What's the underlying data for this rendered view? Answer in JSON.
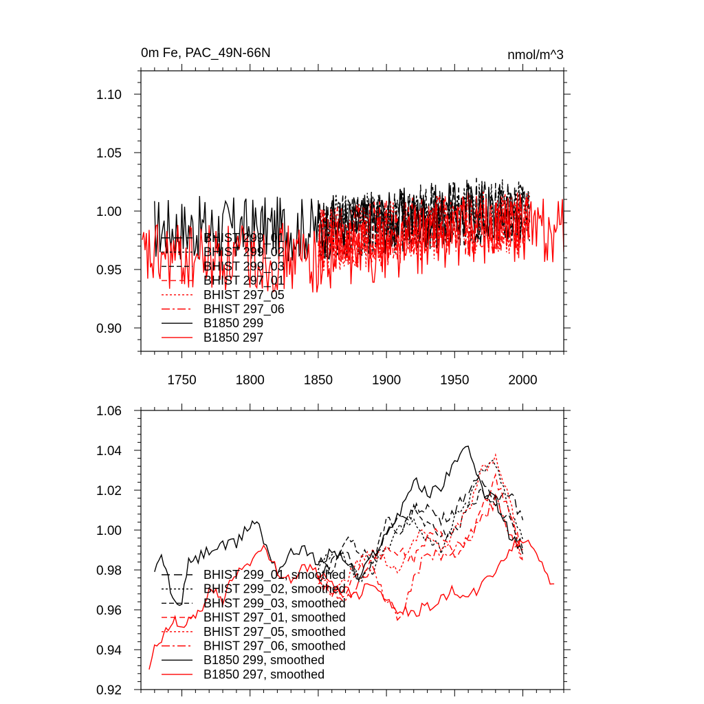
{
  "chart_data": [
    {
      "type": "line",
      "title": "0m Fe, PAC_49N-66N",
      "units": "nmol/m^3",
      "xlim": [
        1720,
        2030
      ],
      "ylim": [
        0.88,
        1.12
      ],
      "xticks": [
        1750,
        1800,
        1850,
        1900,
        1950,
        2000
      ],
      "yticks": [
        0.9,
        0.95,
        1.0,
        1.05,
        1.1
      ],
      "ytick_labels": [
        "0.90",
        "0.95",
        "1.00",
        "1.05",
        "1.10"
      ],
      "legend_position": "lower-left",
      "series": [
        {
          "name": "BHIST 299_01",
          "color": "#000000",
          "dash": "12,6",
          "x_start": 1850,
          "x_end": 2005,
          "base": 0.985,
          "trend": 0.015,
          "amp": 0.03,
          "seed": 11
        },
        {
          "name": "BHIST 299_02",
          "color": "#000000",
          "dash": "3,3",
          "x_start": 1850,
          "x_end": 2005,
          "base": 0.985,
          "trend": 0.015,
          "amp": 0.028,
          "seed": 12
        },
        {
          "name": "BHIST 299_03",
          "color": "#000000",
          "dash": "7,4",
          "x_start": 1850,
          "x_end": 2005,
          "base": 0.985,
          "trend": 0.015,
          "amp": 0.028,
          "seed": 13
        },
        {
          "name": "BHIST 297_01",
          "color": "#ff0000",
          "dash": "8,5",
          "x_start": 1850,
          "x_end": 2005,
          "base": 0.975,
          "trend": 0.015,
          "amp": 0.028,
          "seed": 14
        },
        {
          "name": "BHIST 297_05",
          "color": "#ff0000",
          "dash": "3,3",
          "x_start": 1850,
          "x_end": 2005,
          "base": 0.975,
          "trend": 0.015,
          "amp": 0.028,
          "seed": 15
        },
        {
          "name": "BHIST 297_06",
          "color": "#ff0000",
          "dash": "12,4,3,4",
          "x_start": 1850,
          "x_end": 2005,
          "base": 0.975,
          "trend": 0.015,
          "amp": 0.028,
          "seed": 16
        },
        {
          "name": "B1850 299",
          "color": "#000000",
          "dash": "",
          "x_start": 1730,
          "x_end": 2000,
          "base": 0.985,
          "trend": 0.015,
          "amp": 0.028,
          "seed": 17
        },
        {
          "name": "B1850 297",
          "color": "#ff0000",
          "dash": "",
          "x_start": 1721,
          "x_end": 2030,
          "base": 0.96,
          "trend": 0.025,
          "amp": 0.03,
          "seed": 18
        }
      ]
    },
    {
      "type": "line",
      "xlim": [
        1720,
        2030
      ],
      "ylim": [
        0.92,
        1.06
      ],
      "xticks": [
        1750,
        1800,
        1850,
        1900,
        1950,
        2000
      ],
      "yticks": [
        0.92,
        0.94,
        0.96,
        0.98,
        1.0,
        1.02,
        1.04,
        1.06
      ],
      "ytick_labels": [
        "0.92",
        "0.94",
        "0.96",
        "0.98",
        "1.00",
        "1.02",
        "1.04",
        "1.06"
      ],
      "legend_position": "lower-left",
      "series": [
        {
          "name": "BHIST 299_01, smoothed",
          "color": "#000000",
          "dash": "12,6",
          "x": [
            1850,
            1860,
            1870,
            1880,
            1890,
            1900,
            1910,
            1920,
            1930,
            1940,
            1950,
            1960,
            1970,
            1980,
            1990,
            2000
          ],
          "y": [
            0.975,
            0.985,
            0.99,
            0.975,
            0.985,
            0.998,
            1.005,
            1.01,
            1.012,
            1.005,
            1.01,
            1.02,
            1.025,
            1.015,
            1.02,
            1.005
          ]
        },
        {
          "name": "BHIST 299_02, smoothed",
          "color": "#000000",
          "dash": "3,3",
          "x": [
            1850,
            1860,
            1870,
            1880,
            1890,
            1900,
            1910,
            1920,
            1930,
            1940,
            1950,
            1960,
            1970,
            1980,
            1990,
            2000
          ],
          "y": [
            0.98,
            0.99,
            0.985,
            0.975,
            0.98,
            0.99,
            1.0,
            1.005,
            0.995,
            0.99,
            1.005,
            1.015,
            1.03,
            1.035,
            1.01,
            0.995
          ]
        },
        {
          "name": "BHIST 299_03, smoothed",
          "color": "#000000",
          "dash": "7,4",
          "x": [
            1850,
            1860,
            1870,
            1880,
            1890,
            1900,
            1910,
            1920,
            1930,
            1940,
            1950,
            1960,
            1970,
            1980,
            1990,
            2000
          ],
          "y": [
            0.985,
            0.978,
            0.995,
            0.99,
            0.985,
            1.005,
            1.0,
            1.01,
            1.002,
            0.998,
            1.0,
            1.01,
            1.02,
            1.015,
            1.005,
            0.99
          ]
        },
        {
          "name": "BHIST 297_01, smoothed",
          "color": "#ff0000",
          "dash": "8,5",
          "x": [
            1850,
            1860,
            1870,
            1880,
            1890,
            1900,
            1910,
            1920,
            1930,
            1940,
            1950,
            1960,
            1970,
            1980,
            1990,
            2000
          ],
          "y": [
            0.975,
            0.97,
            0.968,
            0.98,
            0.985,
            0.99,
            0.99,
            0.985,
            0.995,
            1.0,
            0.985,
            0.995,
            1.01,
            1.025,
            1.01,
            0.99
          ]
        },
        {
          "name": "BHIST 297_05, smoothed",
          "color": "#ff0000",
          "dash": "3,3",
          "x": [
            1850,
            1860,
            1870,
            1880,
            1890,
            1900,
            1910,
            1920,
            1930,
            1940,
            1950,
            1960,
            1970,
            1980,
            1990,
            2000
          ],
          "y": [
            0.98,
            0.97,
            0.975,
            0.985,
            0.99,
            0.985,
            0.98,
            0.995,
            1.0,
            0.99,
            1.0,
            1.01,
            1.03,
            1.035,
            1.015,
            0.985
          ]
        },
        {
          "name": "BHIST 297_06, smoothed",
          "color": "#ff0000",
          "dash": "12,4,3,4",
          "x": [
            1850,
            1860,
            1870,
            1880,
            1890,
            1900,
            1910,
            1920,
            1930,
            1940,
            1950,
            1960,
            1970,
            1980,
            1990,
            2000
          ],
          "y": [
            0.975,
            0.968,
            0.965,
            0.975,
            0.98,
            0.965,
            0.955,
            0.975,
            0.99,
            0.985,
            0.99,
            0.995,
            1.005,
            1.015,
            1.0,
            0.985
          ]
        },
        {
          "name": "B1850 299, smoothed",
          "color": "#000000",
          "dash": "",
          "x": [
            1730,
            1735,
            1740,
            1745,
            1750,
            1755,
            1760,
            1770,
            1780,
            1790,
            1800,
            1805,
            1810,
            1820,
            1830,
            1840,
            1850,
            1860,
            1870,
            1880,
            1890,
            1900,
            1910,
            1920,
            1930,
            1940,
            1950,
            1960,
            1970,
            1980,
            1990,
            2000
          ],
          "y": [
            0.978,
            0.987,
            0.975,
            0.962,
            0.965,
            0.983,
            0.985,
            0.99,
            0.992,
            0.993,
            1.003,
            1.005,
            0.995,
            0.98,
            0.988,
            0.992,
            0.982,
            0.99,
            0.985,
            0.975,
            0.988,
            0.998,
            1.01,
            1.025,
            1.018,
            1.022,
            1.035,
            1.04,
            1.02,
            1.015,
            0.998,
            0.988
          ]
        },
        {
          "name": "B1850 297, smoothed",
          "color": "#ff0000",
          "dash": "",
          "x": [
            1726,
            1730,
            1735,
            1740,
            1745,
            1750,
            1755,
            1760,
            1765,
            1770,
            1775,
            1780,
            1785,
            1790,
            1800,
            1810,
            1820,
            1830,
            1840,
            1850,
            1860,
            1870,
            1880,
            1890,
            1900,
            1910,
            1920,
            1930,
            1940,
            1950,
            1960,
            1970,
            1980,
            1990,
            2000,
            2010,
            2020,
            2023
          ],
          "y": [
            0.93,
            0.94,
            0.945,
            0.95,
            0.955,
            0.95,
            0.955,
            0.958,
            0.96,
            0.968,
            0.972,
            0.962,
            0.975,
            0.978,
            0.985,
            0.99,
            0.98,
            0.975,
            0.982,
            0.978,
            0.972,
            0.97,
            0.968,
            0.975,
            0.965,
            0.96,
            0.958,
            0.962,
            0.965,
            0.97,
            0.965,
            0.972,
            0.98,
            0.99,
            0.995,
            0.99,
            0.975,
            0.973
          ]
        }
      ]
    }
  ]
}
